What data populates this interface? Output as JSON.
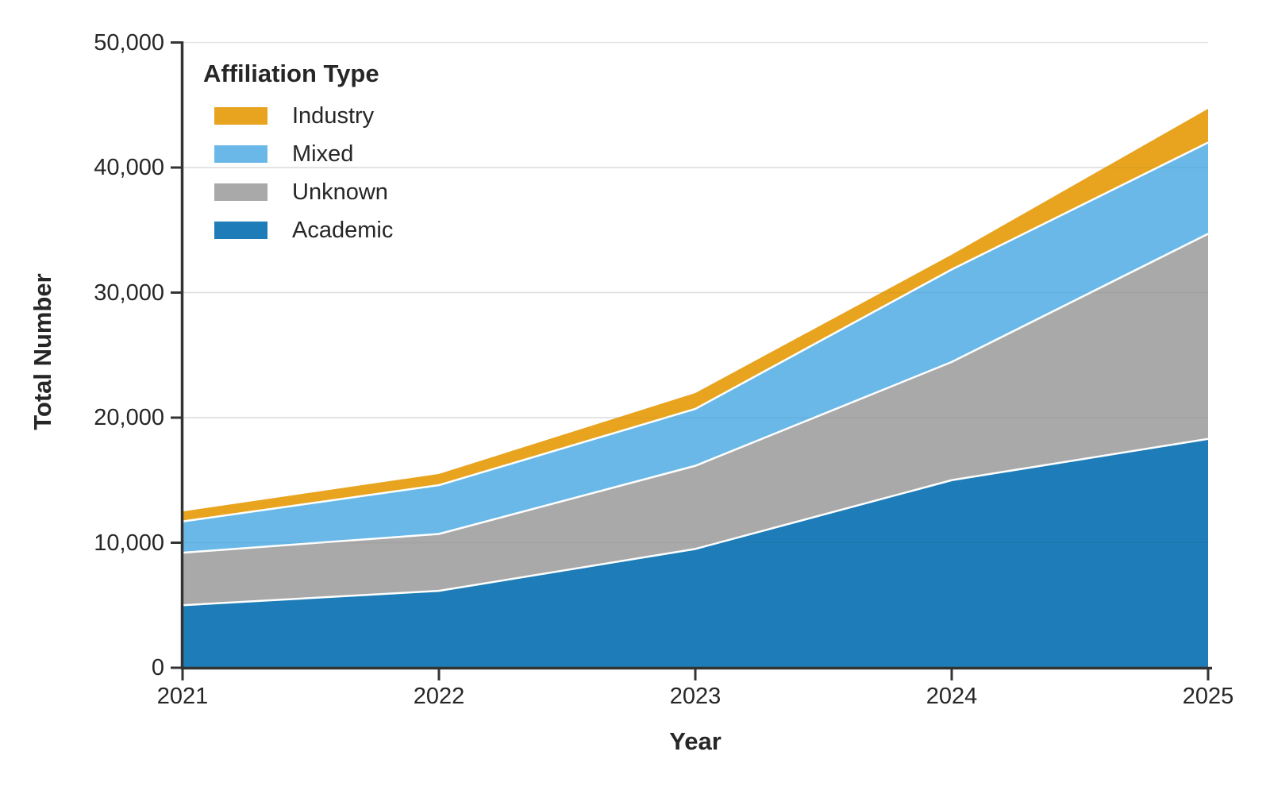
{
  "chart_data": {
    "type": "area",
    "stacked": true,
    "xlabel": "Year",
    "ylabel": "Total Number",
    "x": [
      2021,
      2022,
      2023,
      2024,
      2025
    ],
    "xtick_labels": [
      "2021",
      "2022",
      "2023",
      "2024",
      "2025"
    ],
    "yticks": [
      0,
      10000,
      20000,
      30000,
      40000,
      50000
    ],
    "ytick_labels": [
      "0",
      "10,000",
      "20,000",
      "30,000",
      "40,000",
      "50,000"
    ],
    "ylim": [
      0,
      50000
    ],
    "grid": true,
    "legend": {
      "title": "Affiliation Type",
      "position": "upper-left",
      "order": [
        "Industry",
        "Mixed",
        "Unknown",
        "Academic"
      ]
    },
    "series": [
      {
        "name": "Academic",
        "color": "#1E7DB8",
        "values": [
          5000,
          6150,
          9500,
          15000,
          18300
        ]
      },
      {
        "name": "Unknown",
        "color": "#A9A9A9",
        "values": [
          4200,
          4550,
          6650,
          9450,
          16400
        ]
      },
      {
        "name": "Mixed",
        "color": "#69B8E8",
        "values": [
          2500,
          3900,
          4550,
          7400,
          7300
        ]
      },
      {
        "name": "Industry",
        "color": "#E8A41F",
        "values": [
          800,
          900,
          1270,
          1180,
          2700
        ]
      }
    ]
  },
  "style": {
    "axis_color": "#333333",
    "tick_label_color": "#262626",
    "grid_color": "#E6E6E6",
    "separator_color": "#FFFFFF",
    "background": "#FFFFFF"
  }
}
